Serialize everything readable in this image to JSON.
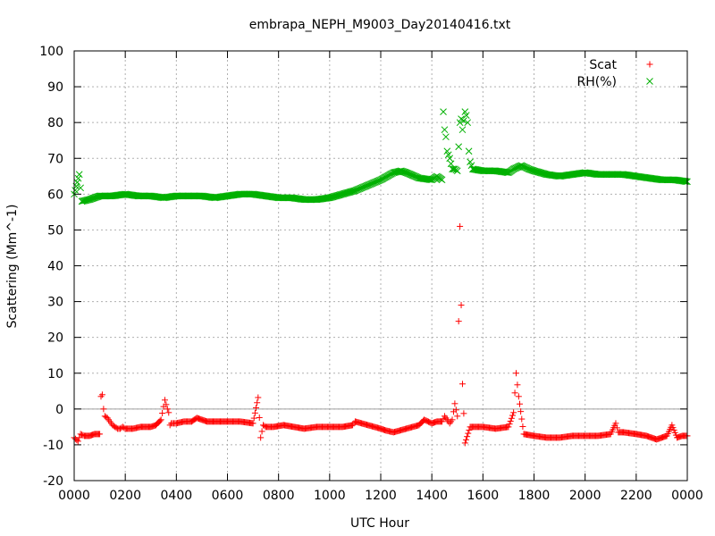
{
  "chart_data": {
    "type": "scatter",
    "title": "embrapa_NEPH_M9003_Day20140416.txt",
    "xlabel": "UTC Hour",
    "ylabel": "Scattering (Mm^-1)",
    "xlim": [
      0,
      2400
    ],
    "ylim": [
      -20,
      100
    ],
    "x_ticks": [
      "0000",
      "0200",
      "0400",
      "0600",
      "0800",
      "1000",
      "1200",
      "1400",
      "1600",
      "1800",
      "2000",
      "2200",
      "0000"
    ],
    "y_ticks": [
      "-20",
      "-10",
      "0",
      "10",
      "20",
      "30",
      "40",
      "50",
      "60",
      "70",
      "80",
      "90",
      "100"
    ],
    "grid": true,
    "zero_line": true,
    "legend_position": "top-right",
    "series": [
      {
        "name": "Scat",
        "marker": "+",
        "color": "#ff0000",
        "x": [
          0,
          15,
          25,
          40,
          60,
          80,
          100,
          105,
          110,
          115,
          120,
          130,
          140,
          150,
          160,
          170,
          180,
          190,
          200,
          230,
          260,
          300,
          320,
          340,
          355,
          365,
          370,
          375,
          380,
          390,
          400,
          430,
          460,
          480,
          500,
          520,
          540,
          560,
          600,
          650,
          700,
          720,
          730,
          740,
          750,
          780,
          820,
          860,
          900,
          950,
          1000,
          1050,
          1090,
          1100,
          1150,
          1200,
          1220,
          1250,
          1300,
          1350,
          1370,
          1400,
          1420,
          1440,
          1450,
          1460,
          1470,
          1480,
          1490,
          1500,
          1510,
          1520,
          1530,
          1550,
          1600,
          1650,
          1700,
          1720,
          1730,
          1740,
          1760,
          1800,
          1850,
          1900,
          1950,
          2000,
          2050,
          2100,
          2120,
          2130,
          2150,
          2200,
          2240,
          2260,
          2280,
          2300,
          2320,
          2340,
          2360,
          2380,
          2400
        ],
        "y": [
          -8,
          -9,
          -7,
          -7.5,
          -7.5,
          -7,
          -7,
          3.5,
          4,
          0,
          -2,
          -2.5,
          -3.5,
          -4.5,
          -5,
          -5.5,
          -5.5,
          -5,
          -5.5,
          -5.5,
          -5,
          -5,
          -4.5,
          -3,
          2.5,
          0,
          -1,
          -4.5,
          -4,
          -4,
          -4,
          -3.5,
          -3.5,
          -2.5,
          -3,
          -3.5,
          -3.5,
          -3.5,
          -3.5,
          -3.5,
          -4,
          3.2,
          -8,
          -4.5,
          -5,
          -5,
          -4.5,
          -5,
          -5.5,
          -5,
          -5,
          -5,
          -4.5,
          -3.5,
          -4.5,
          -5.5,
          -6,
          -6.5,
          -5.5,
          -4.5,
          -3,
          -4,
          -3.5,
          -3.5,
          -2,
          -3,
          -4,
          -3,
          1.5,
          -2,
          51,
          7,
          -9.5,
          -5,
          -5,
          -5.5,
          -5,
          -1,
          10,
          3.5,
          -7,
          -7.5,
          -8,
          -8,
          -7.5,
          -7.5,
          -7.5,
          -7,
          -4,
          -6.5,
          -6.5,
          -7,
          -7.5,
          -8,
          -8.5,
          -8,
          -7.5,
          -4.5,
          -8,
          -7.5,
          -7.5
        ]
      },
      {
        "name": "RH(%)",
        "marker": "x",
        "color": "#00b000",
        "x": [
          0,
          20,
          30,
          60,
          100,
          150,
          200,
          250,
          300,
          350,
          400,
          450,
          500,
          550,
          600,
          650,
          700,
          750,
          800,
          850,
          900,
          950,
          1000,
          1050,
          1100,
          1150,
          1200,
          1250,
          1280,
          1300,
          1350,
          1400,
          1420,
          1440,
          1445,
          1450,
          1455,
          1460,
          1470,
          1480,
          1490,
          1500,
          1510,
          1515,
          1520,
          1530,
          1535,
          1540,
          1545,
          1550,
          1560,
          1600,
          1650,
          1700,
          1720,
          1750,
          1780,
          1800,
          1850,
          1900,
          1950,
          2000,
          2050,
          2100,
          2150,
          2200,
          2250,
          2300,
          2350,
          2400
        ],
        "y": [
          60,
          65.5,
          58,
          58.5,
          59.5,
          59.5,
          60,
          59.5,
          59.5,
          59,
          59.5,
          59.5,
          59.5,
          59,
          59.5,
          60,
          60,
          59.5,
          59,
          59,
          58.5,
          58.5,
          59,
          60,
          61,
          62.5,
          64,
          66,
          66.5,
          66,
          64.5,
          64,
          65,
          64,
          83,
          78,
          76,
          72,
          70,
          67,
          67,
          66.5,
          80,
          81,
          78,
          83,
          82,
          80,
          72,
          69,
          67,
          66.5,
          66.5,
          66,
          67,
          68,
          67,
          66.5,
          65.5,
          65,
          65.5,
          66,
          65.5,
          65.5,
          65.5,
          65,
          64.5,
          64,
          64,
          63.5
        ]
      }
    ]
  }
}
